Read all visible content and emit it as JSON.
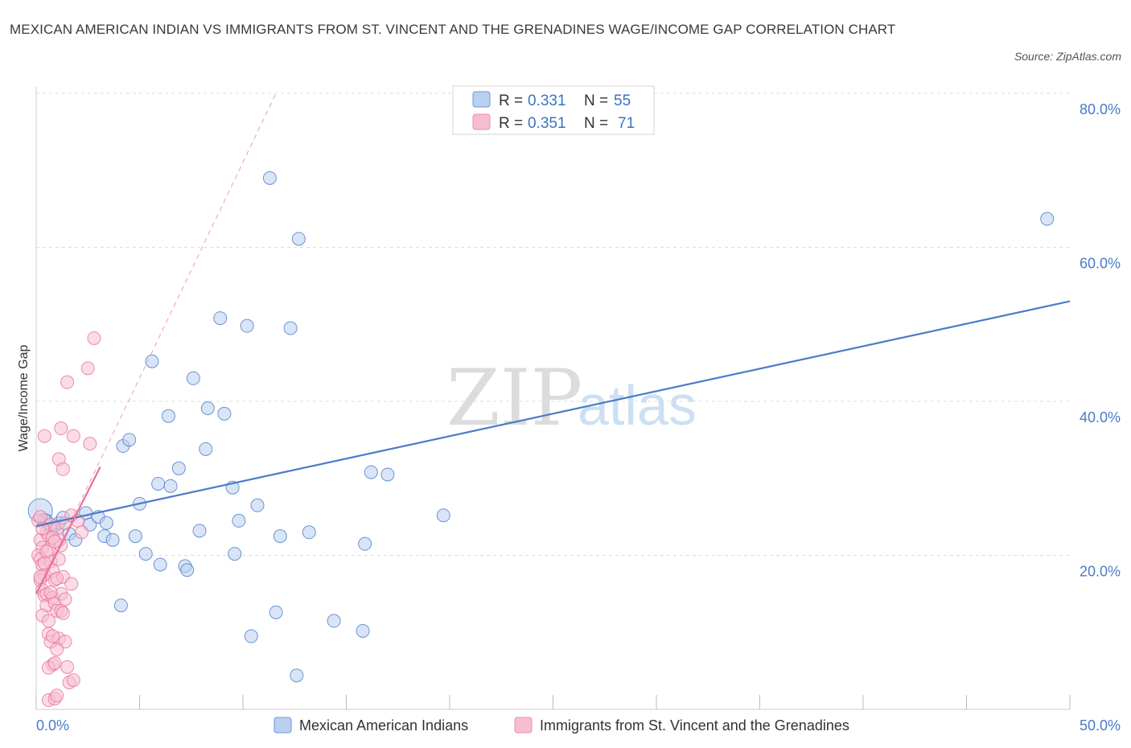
{
  "title": "MEXICAN AMERICAN INDIAN VS IMMIGRANTS FROM ST. VINCENT AND THE GRENADINES WAGE/INCOME GAP CORRELATION CHART",
  "source": "Source: ZipAtlas.com",
  "watermark": {
    "zip": "ZIP",
    "atlas": "atlas"
  },
  "colors": {
    "blue": "#4a7cc7",
    "blue_fill": "#b9d0f1",
    "pink": "#e8709a",
    "pink_fill": "#f6bfd0",
    "grid": "#dddddd"
  },
  "legend": {
    "rows": [
      {
        "r_label": "R = ",
        "r_value": "0.331",
        "n_label": "N = ",
        "n_value": "55"
      },
      {
        "r_label": "R = ",
        "r_value": "0.351",
        "n_label": "N = ",
        "n_value": "71"
      }
    ]
  },
  "chart_data": {
    "type": "scatter",
    "ylabel": "Wage/Income Gap",
    "xlim": [
      0,
      50
    ],
    "ylim": [
      0,
      80
    ],
    "x_tick_labels": [
      "0.0%",
      "50.0%"
    ],
    "y_ticks": [
      20,
      40,
      60,
      80
    ],
    "y_tick_labels": [
      "20.0%",
      "40.0%",
      "60.0%",
      "80.0%"
    ],
    "series": [
      {
        "name": "Mexican American Indians",
        "color": "blue",
        "trend": {
          "x": [
            0,
            50
          ],
          "y": [
            23.8,
            53.0
          ],
          "style": "solid"
        },
        "points": [
          [
            0.2,
            25.8
          ],
          [
            0.5,
            24.5
          ],
          [
            0.9,
            23.8
          ],
          [
            1.1,
            24.2
          ],
          [
            1.6,
            22.8
          ],
          [
            1.9,
            22.0
          ],
          [
            2.4,
            25.5
          ],
          [
            2.6,
            24.0
          ],
          [
            3.0,
            25.0
          ],
          [
            3.4,
            24.2
          ],
          [
            3.3,
            22.5
          ],
          [
            3.7,
            22.0
          ],
          [
            4.1,
            13.5
          ],
          [
            4.2,
            34.2
          ],
          [
            4.5,
            35.0
          ],
          [
            4.8,
            22.5
          ],
          [
            5.0,
            26.7
          ],
          [
            5.3,
            20.2
          ],
          [
            5.6,
            45.2
          ],
          [
            5.9,
            29.3
          ],
          [
            6.0,
            18.8
          ],
          [
            6.4,
            38.1
          ],
          [
            6.5,
            29.0
          ],
          [
            6.9,
            31.3
          ],
          [
            7.2,
            18.6
          ],
          [
            7.3,
            18.1
          ],
          [
            7.6,
            43.0
          ],
          [
            7.9,
            23.2
          ],
          [
            8.2,
            33.8
          ],
          [
            8.3,
            39.1
          ],
          [
            8.9,
            50.8
          ],
          [
            9.1,
            38.4
          ],
          [
            9.5,
            28.8
          ],
          [
            9.6,
            20.2
          ],
          [
            9.8,
            24.5
          ],
          [
            10.2,
            49.8
          ],
          [
            10.4,
            9.5
          ],
          [
            10.7,
            26.5
          ],
          [
            11.3,
            69.0
          ],
          [
            11.6,
            12.6
          ],
          [
            11.8,
            22.5
          ],
          [
            12.3,
            49.5
          ],
          [
            12.6,
            4.4
          ],
          [
            12.7,
            61.1
          ],
          [
            13.2,
            23.0
          ],
          [
            14.4,
            11.5
          ],
          [
            15.8,
            10.2
          ],
          [
            15.9,
            21.5
          ],
          [
            16.2,
            30.8
          ],
          [
            17.0,
            30.5
          ],
          [
            19.7,
            25.2
          ],
          [
            48.9,
            63.7
          ],
          [
            0.4,
            24.6
          ],
          [
            0.7,
            23.5
          ],
          [
            1.3,
            24.9
          ]
        ]
      },
      {
        "name": "Immigrants from St. Vincent and the Grenadines",
        "color": "pink",
        "trend": {
          "x": [
            0,
            3.1
          ],
          "y": [
            15.0,
            31.5
          ],
          "style": "solid",
          "extended": {
            "x": [
              0,
              11.6
            ],
            "y": [
              15.0,
              80.0
            ],
            "style": "dashed"
          }
        },
        "points": [
          [
            0.1,
            24.5
          ],
          [
            0.2,
            22.0
          ],
          [
            0.3,
            21.0
          ],
          [
            0.1,
            20.0
          ],
          [
            0.2,
            19.5
          ],
          [
            0.3,
            18.8
          ],
          [
            0.4,
            17.5
          ],
          [
            0.2,
            16.8
          ],
          [
            0.3,
            15.5
          ],
          [
            0.4,
            14.8
          ],
          [
            0.5,
            13.5
          ],
          [
            0.3,
            12.2
          ],
          [
            0.6,
            11.5
          ],
          [
            0.4,
            35.5
          ],
          [
            0.5,
            23.0
          ],
          [
            0.6,
            22.6
          ],
          [
            0.7,
            24.0
          ],
          [
            0.6,
            20.7
          ],
          [
            0.7,
            19.2
          ],
          [
            0.8,
            18.0
          ],
          [
            0.9,
            16.8
          ],
          [
            0.5,
            15.0
          ],
          [
            0.8,
            14.5
          ],
          [
            0.9,
            13.8
          ],
          [
            1.0,
            12.8
          ],
          [
            0.6,
            9.8
          ],
          [
            0.7,
            8.8
          ],
          [
            0.8,
            5.8
          ],
          [
            0.6,
            5.4
          ],
          [
            0.9,
            6.0
          ],
          [
            0.6,
            1.2
          ],
          [
            0.9,
            1.4
          ],
          [
            1.0,
            1.8
          ],
          [
            1.0,
            23.5
          ],
          [
            1.1,
            22.0
          ],
          [
            1.2,
            21.3
          ],
          [
            1.1,
            19.5
          ],
          [
            1.3,
            17.2
          ],
          [
            1.2,
            15.0
          ],
          [
            1.1,
            9.2
          ],
          [
            1.2,
            12.8
          ],
          [
            1.1,
            32.5
          ],
          [
            1.2,
            36.5
          ],
          [
            1.3,
            31.2
          ],
          [
            1.4,
            24.2
          ],
          [
            1.4,
            8.8
          ],
          [
            1.5,
            5.5
          ],
          [
            1.4,
            14.3
          ],
          [
            1.6,
            3.5
          ],
          [
            1.7,
            16.3
          ],
          [
            1.5,
            42.5
          ],
          [
            1.7,
            25.2
          ],
          [
            1.8,
            35.5
          ],
          [
            1.8,
            3.8
          ],
          [
            2.0,
            24.5
          ],
          [
            2.2,
            23.0
          ],
          [
            2.5,
            44.3
          ],
          [
            2.6,
            34.5
          ],
          [
            2.8,
            48.2
          ],
          [
            0.2,
            25.0
          ],
          [
            0.3,
            23.5
          ],
          [
            0.5,
            20.5
          ],
          [
            0.4,
            19.0
          ],
          [
            0.2,
            17.2
          ],
          [
            0.8,
            22.3
          ],
          [
            0.9,
            21.8
          ],
          [
            1.0,
            17.0
          ],
          [
            0.7,
            15.2
          ],
          [
            1.3,
            12.5
          ],
          [
            0.8,
            9.5
          ],
          [
            1.0,
            7.8
          ]
        ]
      }
    ],
    "legend_position": "top-center"
  }
}
